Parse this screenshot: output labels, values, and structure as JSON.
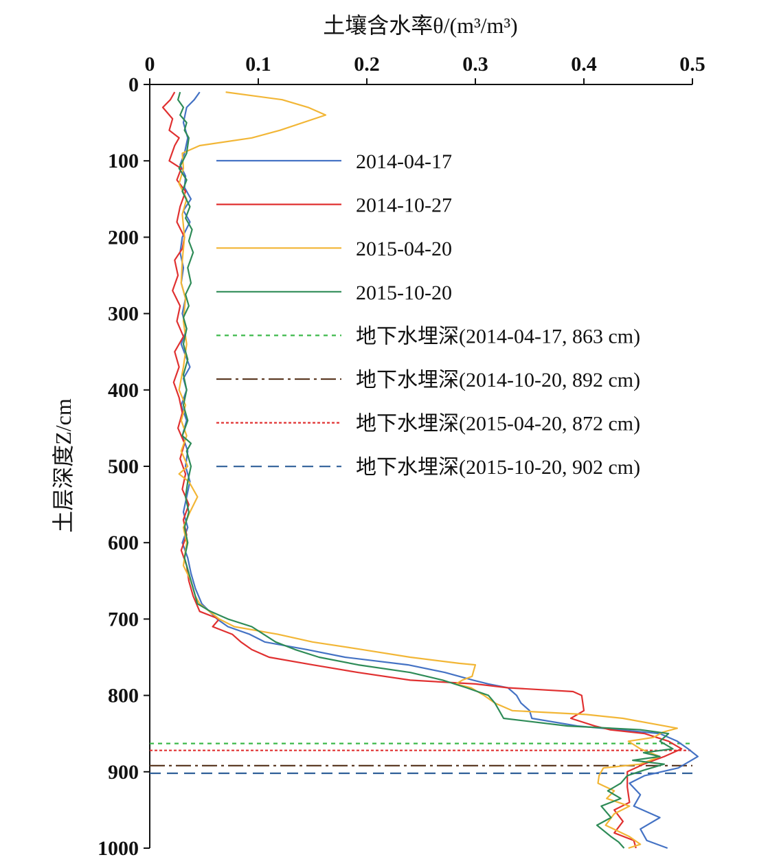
{
  "chart_data": {
    "type": "line",
    "title": "",
    "xlabel": "土壤含水率θ/(m³/m³)",
    "ylabel": "土层深度Z/cm",
    "xlim": [
      0,
      0.5
    ],
    "ylim": [
      0,
      1000
    ],
    "y_inverted": true,
    "x_axis_position": "top",
    "x_ticks": [
      "0",
      "0.1",
      "0.2",
      "0.3",
      "0.4",
      "0.5"
    ],
    "y_ticks": [
      "0",
      "100",
      "200",
      "300",
      "400",
      "500",
      "600",
      "700",
      "800",
      "900",
      "1000"
    ],
    "grid": false,
    "legend_position": "upper-right",
    "series": [
      {
        "name": "2014-04-17",
        "color": "#4472c4",
        "style": "solid",
        "points": [
          [
            0.046,
            10
          ],
          [
            0.041,
            20
          ],
          [
            0.034,
            30
          ],
          [
            0.031,
            50
          ],
          [
            0.035,
            70
          ],
          [
            0.032,
            90
          ],
          [
            0.028,
            105
          ],
          [
            0.033,
            120
          ],
          [
            0.032,
            135
          ],
          [
            0.038,
            150
          ],
          [
            0.031,
            165
          ],
          [
            0.037,
            180
          ],
          [
            0.03,
            200
          ],
          [
            0.028,
            220
          ],
          [
            0.031,
            240
          ],
          [
            0.029,
            260
          ],
          [
            0.033,
            280
          ],
          [
            0.03,
            300
          ],
          [
            0.034,
            320
          ],
          [
            0.029,
            340
          ],
          [
            0.033,
            355
          ],
          [
            0.037,
            370
          ],
          [
            0.031,
            385
          ],
          [
            0.034,
            400
          ],
          [
            0.029,
            420
          ],
          [
            0.034,
            440
          ],
          [
            0.03,
            460
          ],
          [
            0.035,
            480
          ],
          [
            0.033,
            500
          ],
          [
            0.037,
            520
          ],
          [
            0.034,
            540
          ],
          [
            0.031,
            560
          ],
          [
            0.035,
            580
          ],
          [
            0.03,
            600
          ],
          [
            0.035,
            620
          ],
          [
            0.038,
            640
          ],
          [
            0.042,
            660
          ],
          [
            0.048,
            680
          ],
          [
            0.062,
            700
          ],
          [
            0.072,
            710
          ],
          [
            0.092,
            720
          ],
          [
            0.106,
            730
          ],
          [
            0.145,
            740
          ],
          [
            0.18,
            750
          ],
          [
            0.238,
            760
          ],
          [
            0.272,
            770
          ],
          [
            0.298,
            780
          ],
          [
            0.312,
            785
          ],
          [
            0.33,
            790
          ],
          [
            0.338,
            800
          ],
          [
            0.342,
            810
          ],
          [
            0.35,
            820
          ],
          [
            0.352,
            830
          ],
          [
            0.394,
            840
          ],
          [
            0.432,
            845
          ],
          [
            0.47,
            850
          ],
          [
            0.486,
            860
          ],
          [
            0.496,
            870
          ],
          [
            0.505,
            880
          ],
          [
            0.487,
            895
          ],
          [
            0.456,
            905
          ],
          [
            0.442,
            915
          ],
          [
            0.452,
            930
          ],
          [
            0.446,
            945
          ],
          [
            0.47,
            960
          ],
          [
            0.452,
            975
          ],
          [
            0.458,
            990
          ],
          [
            0.477,
            1000
          ]
        ]
      },
      {
        "name": "2014-10-27",
        "color": "#e03030",
        "style": "solid",
        "points": [
          [
            0.023,
            10
          ],
          [
            0.019,
            20
          ],
          [
            0.012,
            30
          ],
          [
            0.021,
            45
          ],
          [
            0.018,
            60
          ],
          [
            0.027,
            70
          ],
          [
            0.023,
            80
          ],
          [
            0.018,
            100
          ],
          [
            0.029,
            110
          ],
          [
            0.025,
            125
          ],
          [
            0.033,
            140
          ],
          [
            0.028,
            160
          ],
          [
            0.025,
            180
          ],
          [
            0.032,
            200
          ],
          [
            0.03,
            215
          ],
          [
            0.023,
            230
          ],
          [
            0.026,
            250
          ],
          [
            0.021,
            270
          ],
          [
            0.028,
            290
          ],
          [
            0.025,
            310
          ],
          [
            0.031,
            330
          ],
          [
            0.023,
            350
          ],
          [
            0.027,
            370
          ],
          [
            0.022,
            390
          ],
          [
            0.027,
            410
          ],
          [
            0.03,
            430
          ],
          [
            0.026,
            450
          ],
          [
            0.032,
            470
          ],
          [
            0.028,
            490
          ],
          [
            0.033,
            510
          ],
          [
            0.03,
            530
          ],
          [
            0.036,
            550
          ],
          [
            0.031,
            570
          ],
          [
            0.034,
            590
          ],
          [
            0.029,
            610
          ],
          [
            0.034,
            630
          ],
          [
            0.036,
            650
          ],
          [
            0.04,
            670
          ],
          [
            0.046,
            690
          ],
          [
            0.064,
            700
          ],
          [
            0.058,
            710
          ],
          [
            0.076,
            720
          ],
          [
            0.084,
            730
          ],
          [
            0.094,
            740
          ],
          [
            0.11,
            750
          ],
          [
            0.15,
            760
          ],
          [
            0.192,
            770
          ],
          [
            0.24,
            780
          ],
          [
            0.3,
            785
          ],
          [
            0.33,
            790
          ],
          [
            0.39,
            795
          ],
          [
            0.398,
            800
          ],
          [
            0.4,
            820
          ],
          [
            0.388,
            830
          ],
          [
            0.41,
            840
          ],
          [
            0.424,
            845
          ],
          [
            0.456,
            850
          ],
          [
            0.478,
            860
          ],
          [
            0.49,
            870
          ],
          [
            0.474,
            880
          ],
          [
            0.455,
            890
          ],
          [
            0.44,
            900
          ],
          [
            0.44,
            920
          ],
          [
            0.442,
            940
          ],
          [
            0.428,
            950
          ],
          [
            0.436,
            965
          ],
          [
            0.428,
            980
          ],
          [
            0.446,
            990
          ],
          [
            0.448,
            1000
          ]
        ]
      },
      {
        "name": "2015-04-20",
        "color": "#f2b636",
        "style": "solid",
        "points": [
          [
            0.07,
            10
          ],
          [
            0.122,
            20
          ],
          [
            0.146,
            30
          ],
          [
            0.162,
            40
          ],
          [
            0.12,
            60
          ],
          [
            0.094,
            70
          ],
          [
            0.046,
            80
          ],
          [
            0.03,
            90
          ],
          [
            0.031,
            110
          ],
          [
            0.027,
            130
          ],
          [
            0.034,
            150
          ],
          [
            0.03,
            170
          ],
          [
            0.032,
            200
          ],
          [
            0.03,
            230
          ],
          [
            0.029,
            260
          ],
          [
            0.033,
            280
          ],
          [
            0.031,
            310
          ],
          [
            0.034,
            340
          ],
          [
            0.031,
            370
          ],
          [
            0.027,
            400
          ],
          [
            0.033,
            420
          ],
          [
            0.029,
            440
          ],
          [
            0.034,
            460
          ],
          [
            0.029,
            480
          ],
          [
            0.035,
            500
          ],
          [
            0.027,
            510
          ],
          [
            0.036,
            520
          ],
          [
            0.044,
            540
          ],
          [
            0.037,
            560
          ],
          [
            0.031,
            580
          ],
          [
            0.034,
            600
          ],
          [
            0.031,
            630
          ],
          [
            0.038,
            650
          ],
          [
            0.042,
            670
          ],
          [
            0.046,
            680
          ],
          [
            0.064,
            700
          ],
          [
            0.078,
            710
          ],
          [
            0.118,
            720
          ],
          [
            0.15,
            730
          ],
          [
            0.196,
            740
          ],
          [
            0.24,
            750
          ],
          [
            0.285,
            758
          ],
          [
            0.3,
            760
          ],
          [
            0.298,
            770
          ],
          [
            0.297,
            775
          ],
          [
            0.288,
            780
          ],
          [
            0.282,
            785
          ],
          [
            0.296,
            790
          ],
          [
            0.308,
            800
          ],
          [
            0.318,
            810
          ],
          [
            0.334,
            820
          ],
          [
            0.402,
            825
          ],
          [
            0.436,
            830
          ],
          [
            0.467,
            838
          ],
          [
            0.486,
            843
          ],
          [
            0.473,
            848
          ],
          [
            0.464,
            855
          ],
          [
            0.441,
            860
          ],
          [
            0.452,
            870
          ],
          [
            0.47,
            880
          ],
          [
            0.452,
            890
          ],
          [
            0.418,
            895
          ],
          [
            0.414,
            905
          ],
          [
            0.413,
            915
          ],
          [
            0.428,
            925
          ],
          [
            0.421,
            935
          ],
          [
            0.442,
            945
          ],
          [
            0.428,
            955
          ],
          [
            0.42,
            970
          ],
          [
            0.442,
            985
          ],
          [
            0.452,
            995
          ],
          [
            0.441,
            1000
          ]
        ]
      },
      {
        "name": "2015-10-20",
        "color": "#2e8b57",
        "style": "solid",
        "points": [
          [
            0.028,
            10
          ],
          [
            0.026,
            20
          ],
          [
            0.031,
            30
          ],
          [
            0.028,
            40
          ],
          [
            0.034,
            50
          ],
          [
            0.032,
            60
          ],
          [
            0.036,
            70
          ],
          [
            0.034,
            90
          ],
          [
            0.027,
            110
          ],
          [
            0.034,
            125
          ],
          [
            0.03,
            140
          ],
          [
            0.037,
            160
          ],
          [
            0.033,
            175
          ],
          [
            0.039,
            190
          ],
          [
            0.036,
            205
          ],
          [
            0.04,
            220
          ],
          [
            0.035,
            240
          ],
          [
            0.038,
            260
          ],
          [
            0.033,
            275
          ],
          [
            0.036,
            290
          ],
          [
            0.031,
            305
          ],
          [
            0.034,
            320
          ],
          [
            0.031,
            340
          ],
          [
            0.035,
            360
          ],
          [
            0.031,
            380
          ],
          [
            0.034,
            400
          ],
          [
            0.031,
            420
          ],
          [
            0.035,
            440
          ],
          [
            0.03,
            460
          ],
          [
            0.038,
            470
          ],
          [
            0.034,
            480
          ],
          [
            0.038,
            500
          ],
          [
            0.035,
            520
          ],
          [
            0.033,
            540
          ],
          [
            0.036,
            560
          ],
          [
            0.032,
            580
          ],
          [
            0.035,
            600
          ],
          [
            0.032,
            620
          ],
          [
            0.036,
            640
          ],
          [
            0.04,
            660
          ],
          [
            0.044,
            680
          ],
          [
            0.056,
            690
          ],
          [
            0.072,
            700
          ],
          [
            0.094,
            710
          ],
          [
            0.116,
            730
          ],
          [
            0.134,
            740
          ],
          [
            0.156,
            750
          ],
          [
            0.192,
            760
          ],
          [
            0.24,
            770
          ],
          [
            0.27,
            780
          ],
          [
            0.292,
            790
          ],
          [
            0.312,
            800
          ],
          [
            0.318,
            810
          ],
          [
            0.322,
            820
          ],
          [
            0.326,
            830
          ],
          [
            0.385,
            840
          ],
          [
            0.452,
            845
          ],
          [
            0.478,
            850
          ],
          [
            0.47,
            860
          ],
          [
            0.482,
            870
          ],
          [
            0.455,
            875
          ],
          [
            0.47,
            880
          ],
          [
            0.445,
            885
          ],
          [
            0.474,
            890
          ],
          [
            0.455,
            898
          ],
          [
            0.44,
            905
          ],
          [
            0.434,
            915
          ],
          [
            0.422,
            925
          ],
          [
            0.434,
            935
          ],
          [
            0.416,
            945
          ],
          [
            0.425,
            960
          ],
          [
            0.412,
            970
          ],
          [
            0.425,
            985
          ],
          [
            0.432,
            992
          ],
          [
            0.437,
            1000
          ]
        ]
      }
    ],
    "reference_lines": [
      {
        "name": "地下水埋深(2014-04-17, 863 cm)",
        "depth": 863,
        "color": "#3cb84a",
        "style": "dotted"
      },
      {
        "name": "地下水埋深(2014-10-20, 892 cm)",
        "depth": 892,
        "color": "#5c3a24",
        "style": "dashdot"
      },
      {
        "name": "地下水埋深(2015-04-20, 872 cm)",
        "depth": 872,
        "color": "#e03030",
        "style": "short-dash"
      },
      {
        "name": "地下水埋深(2015-10-20, 902 cm)",
        "depth": 902,
        "color": "#2e5f98",
        "style": "long-dash"
      }
    ]
  }
}
